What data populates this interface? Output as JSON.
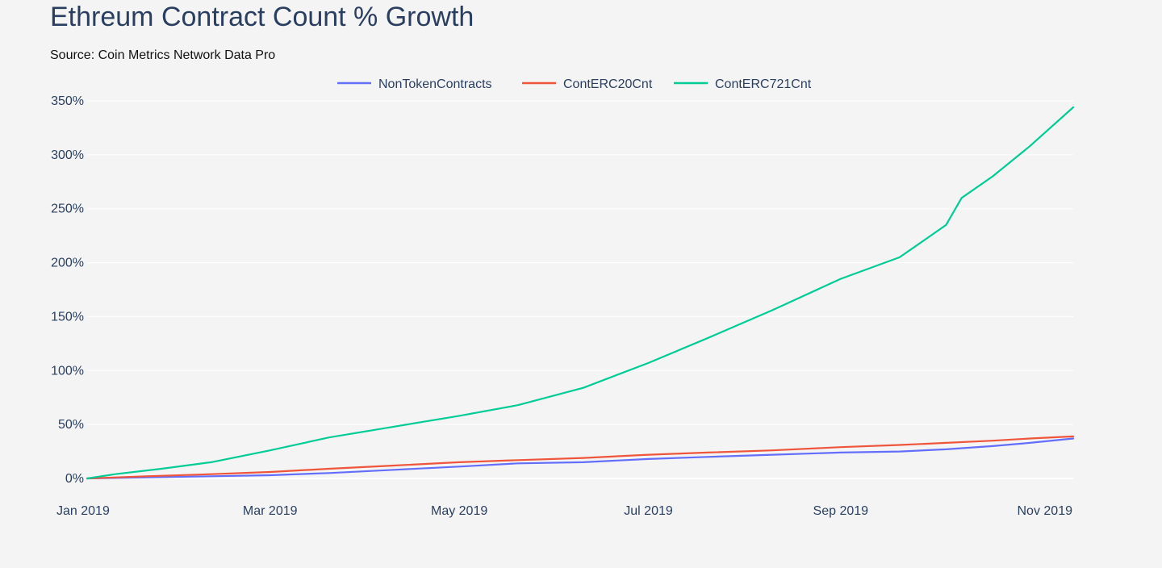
{
  "chart_data": {
    "type": "line",
    "title": "Ethreum Contract Count % Growth",
    "subtitle": "Source: Coin Metrics Network Data Pro",
    "xlabel": "",
    "ylabel": "",
    "x_range": [
      "2019-01-01",
      "2019-11-15"
    ],
    "ylim": [
      0,
      350
    ],
    "x_ticks": [
      {
        "date": "2019-01-01",
        "label": "Jan 2019"
      },
      {
        "date": "2019-03-01",
        "label": "Mar 2019"
      },
      {
        "date": "2019-05-01",
        "label": "May 2019"
      },
      {
        "date": "2019-07-01",
        "label": "Jul 2019"
      },
      {
        "date": "2019-09-01",
        "label": "Sep 2019"
      },
      {
        "date": "2019-11-01",
        "label": "Nov 2019"
      }
    ],
    "y_ticks": [
      {
        "value": 0,
        "label": "0%"
      },
      {
        "value": 50,
        "label": "50%"
      },
      {
        "value": 100,
        "label": "100%"
      },
      {
        "value": 150,
        "label": "150%"
      },
      {
        "value": 200,
        "label": "200%"
      },
      {
        "value": 250,
        "label": "250%"
      },
      {
        "value": 300,
        "label": "300%"
      },
      {
        "value": 350,
        "label": "350%"
      }
    ],
    "grid": true,
    "legend_position": "top-center",
    "series": [
      {
        "name": "NonTokenContracts",
        "color": "#636efa",
        "points": [
          [
            "2019-01-01",
            0
          ],
          [
            "2019-01-20",
            1
          ],
          [
            "2019-02-10",
            2
          ],
          [
            "2019-03-01",
            3
          ],
          [
            "2019-03-20",
            5
          ],
          [
            "2019-04-10",
            8
          ],
          [
            "2019-05-01",
            11
          ],
          [
            "2019-05-20",
            14
          ],
          [
            "2019-06-10",
            15
          ],
          [
            "2019-07-01",
            18
          ],
          [
            "2019-07-20",
            20
          ],
          [
            "2019-08-10",
            22
          ],
          [
            "2019-09-01",
            24
          ],
          [
            "2019-09-20",
            25
          ],
          [
            "2019-10-05",
            27
          ],
          [
            "2019-10-20",
            30
          ],
          [
            "2019-11-01",
            33
          ],
          [
            "2019-11-15",
            37
          ]
        ]
      },
      {
        "name": "ContERC20Cnt",
        "color": "#ef553b",
        "points": [
          [
            "2019-01-01",
            0
          ],
          [
            "2019-01-20",
            2
          ],
          [
            "2019-02-10",
            4
          ],
          [
            "2019-03-01",
            6
          ],
          [
            "2019-03-20",
            9
          ],
          [
            "2019-04-10",
            12
          ],
          [
            "2019-05-01",
            15
          ],
          [
            "2019-05-20",
            17
          ],
          [
            "2019-06-10",
            19
          ],
          [
            "2019-07-01",
            22
          ],
          [
            "2019-07-20",
            24
          ],
          [
            "2019-08-10",
            26
          ],
          [
            "2019-09-01",
            29
          ],
          [
            "2019-09-20",
            31
          ],
          [
            "2019-10-05",
            33
          ],
          [
            "2019-10-20",
            35
          ],
          [
            "2019-11-01",
            37
          ],
          [
            "2019-11-15",
            39
          ]
        ]
      },
      {
        "name": "ContERC721Cnt",
        "color": "#00cc96",
        "points": [
          [
            "2019-01-01",
            0
          ],
          [
            "2019-01-10",
            4
          ],
          [
            "2019-01-25",
            9
          ],
          [
            "2019-02-10",
            15
          ],
          [
            "2019-03-01",
            26
          ],
          [
            "2019-03-20",
            38
          ],
          [
            "2019-04-10",
            48
          ],
          [
            "2019-05-01",
            58
          ],
          [
            "2019-05-20",
            68
          ],
          [
            "2019-06-10",
            84
          ],
          [
            "2019-07-01",
            107
          ],
          [
            "2019-07-20",
            130
          ],
          [
            "2019-08-10",
            156
          ],
          [
            "2019-09-01",
            185
          ],
          [
            "2019-09-20",
            205
          ],
          [
            "2019-10-01",
            227
          ],
          [
            "2019-10-05",
            235
          ],
          [
            "2019-10-10",
            260
          ],
          [
            "2019-10-20",
            280
          ],
          [
            "2019-11-01",
            308
          ],
          [
            "2019-11-15",
            344
          ]
        ]
      }
    ]
  }
}
